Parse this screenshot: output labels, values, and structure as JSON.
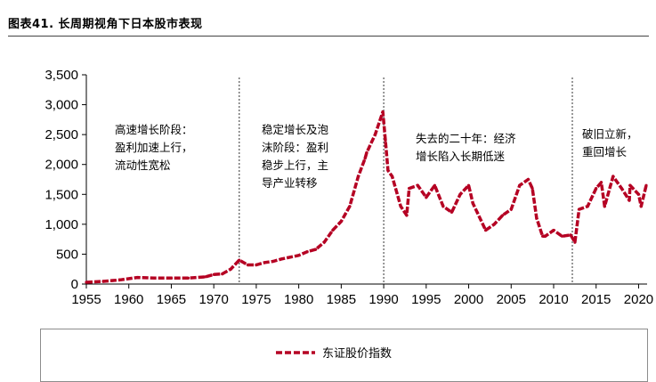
{
  "title": "图表41. 长周期视角下日本股市表现",
  "chart_data": {
    "type": "line",
    "series": [
      {
        "name": "东证股价指数",
        "color": "#b50023",
        "x": [
          1955,
          1957,
          1959,
          1961,
          1963,
          1965,
          1967,
          1969,
          1970,
          1971,
          1972,
          1973,
          1974,
          1975,
          1976,
          1977,
          1978,
          1979,
          1980,
          1981,
          1982,
          1983,
          1984,
          1985,
          1986,
          1987,
          1987.8,
          1988,
          1989,
          1989.9,
          1990.2,
          1990.5,
          1991,
          1992,
          1992.7,
          1993,
          1994,
          1995,
          1996,
          1997,
          1998,
          1999,
          2000,
          2000.5,
          2001,
          2002,
          2003,
          2004,
          2005,
          2006,
          2007,
          2007.5,
          2008,
          2008.7,
          2009,
          2010,
          2011,
          2012,
          2012.5,
          2013,
          2014,
          2015,
          2015.6,
          2016,
          2017,
          2018,
          2018.9,
          2019,
          2020,
          2020.3,
          2020.9
        ],
        "values": [
          30,
          45,
          70,
          110,
          100,
          100,
          100,
          120,
          160,
          170,
          250,
          400,
          320,
          320,
          360,
          380,
          420,
          450,
          480,
          540,
          580,
          700,
          900,
          1050,
          1300,
          1800,
          2100,
          2200,
          2500,
          2880,
          2400,
          1900,
          1800,
          1300,
          1150,
          1600,
          1650,
          1450,
          1650,
          1300,
          1200,
          1500,
          1650,
          1350,
          1200,
          900,
          1000,
          1150,
          1250,
          1650,
          1750,
          1600,
          1100,
          800,
          800,
          900,
          800,
          820,
          700,
          1250,
          1300,
          1600,
          1700,
          1300,
          1800,
          1600,
          1400,
          1650,
          1500,
          1300,
          1650
        ]
      }
    ],
    "xlim": [
      1955,
      2021
    ],
    "x_ticks": [
      "1955",
      "1960",
      "1965",
      "1970",
      "1975",
      "1980",
      "1985",
      "1990",
      "1995",
      "2000",
      "2005",
      "2010",
      "2015",
      "2020"
    ],
    "ylim": [
      0,
      3500
    ],
    "y_ticks": [
      "0",
      "500",
      "1,000",
      "1,500",
      "2,000",
      "2,500",
      "3,000",
      "3,500"
    ],
    "grid": false,
    "legend_position": "bottom",
    "period_dividers": [
      1973,
      1990,
      2012.2
    ],
    "annotations": [
      {
        "lines": [
          "高速增长阶段：",
          "盈利加速上行，",
          "流动性宽松"
        ]
      },
      {
        "lines": [
          "稳定增长及泡",
          "沫阶段：盈利",
          "稳步上行，主",
          "导产业转移"
        ]
      },
      {
        "lines": [
          "失去的二十年：经济",
          "增长陷入长期低迷"
        ]
      },
      {
        "lines": [
          "破旧立新，",
          "重回增长"
        ]
      }
    ]
  }
}
